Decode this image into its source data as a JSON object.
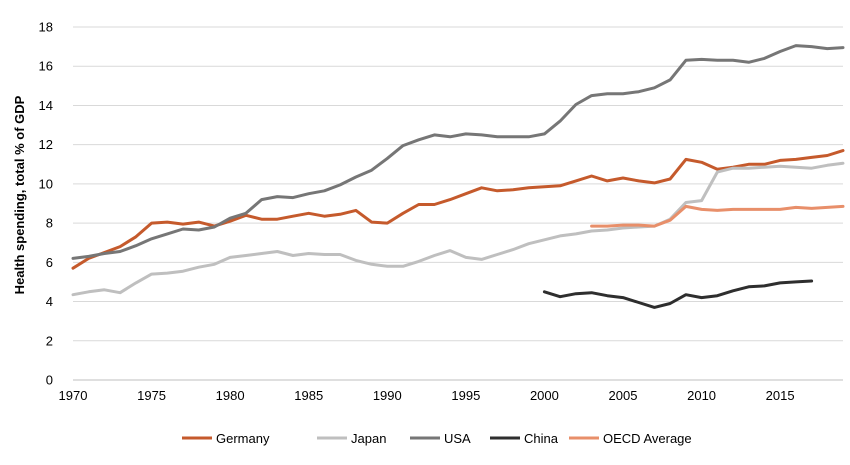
{
  "chart_data": {
    "type": "line",
    "title": "",
    "xlabel": "",
    "ylabel": "Health spending, total % of GDP",
    "xlim": [
      1970,
      2019
    ],
    "ylim": [
      0,
      18
    ],
    "x_ticks": [
      1970,
      1975,
      1980,
      1985,
      1990,
      1995,
      2000,
      2005,
      2010,
      2015
    ],
    "y_ticks": [
      0,
      2,
      4,
      6,
      8,
      10,
      12,
      14,
      16,
      18
    ],
    "grid": "horizontal",
    "legend_position": "bottom",
    "series": [
      {
        "name": "Germany",
        "color": "#c55a2c",
        "points": [
          [
            1970,
            5.7
          ],
          [
            1971,
            6.2
          ],
          [
            1972,
            6.5
          ],
          [
            1973,
            6.8
          ],
          [
            1974,
            7.3
          ],
          [
            1975,
            8.0
          ],
          [
            1976,
            8.05
          ],
          [
            1977,
            7.95
          ],
          [
            1978,
            8.05
          ],
          [
            1979,
            7.85
          ],
          [
            1980,
            8.1
          ],
          [
            1981,
            8.4
          ],
          [
            1982,
            8.2
          ],
          [
            1983,
            8.2
          ],
          [
            1984,
            8.35
          ],
          [
            1985,
            8.5
          ],
          [
            1986,
            8.35
          ],
          [
            1987,
            8.45
          ],
          [
            1988,
            8.65
          ],
          [
            1989,
            8.05
          ],
          [
            1990,
            8.0
          ],
          [
            1991,
            8.5
          ],
          [
            1992,
            8.95
          ],
          [
            1993,
            8.95
          ],
          [
            1994,
            9.2
          ],
          [
            1995,
            9.5
          ],
          [
            1996,
            9.8
          ],
          [
            1997,
            9.65
          ],
          [
            1998,
            9.7
          ],
          [
            1999,
            9.8
          ],
          [
            2000,
            9.85
          ],
          [
            2001,
            9.9
          ],
          [
            2002,
            10.15
          ],
          [
            2003,
            10.4
          ],
          [
            2004,
            10.15
          ],
          [
            2005,
            10.3
          ],
          [
            2006,
            10.15
          ],
          [
            2007,
            10.05
          ],
          [
            2008,
            10.25
          ],
          [
            2009,
            11.25
          ],
          [
            2010,
            11.1
          ],
          [
            2011,
            10.75
          ],
          [
            2012,
            10.85
          ],
          [
            2013,
            11.0
          ],
          [
            2014,
            11.0
          ],
          [
            2015,
            11.2
          ],
          [
            2016,
            11.25
          ],
          [
            2017,
            11.35
          ],
          [
            2018,
            11.45
          ],
          [
            2019,
            11.7
          ]
        ]
      },
      {
        "name": "Japan",
        "color": "#bfbfbf",
        "points": [
          [
            1970,
            4.35
          ],
          [
            1971,
            4.5
          ],
          [
            1972,
            4.6
          ],
          [
            1973,
            4.45
          ],
          [
            1974,
            4.95
          ],
          [
            1975,
            5.4
          ],
          [
            1976,
            5.45
          ],
          [
            1977,
            5.55
          ],
          [
            1978,
            5.75
          ],
          [
            1979,
            5.9
          ],
          [
            1980,
            6.25
          ],
          [
            1981,
            6.35
          ],
          [
            1982,
            6.45
          ],
          [
            1983,
            6.55
          ],
          [
            1984,
            6.35
          ],
          [
            1985,
            6.45
          ],
          [
            1986,
            6.4
          ],
          [
            1987,
            6.4
          ],
          [
            1988,
            6.1
          ],
          [
            1989,
            5.9
          ],
          [
            1990,
            5.8
          ],
          [
            1991,
            5.8
          ],
          [
            1992,
            6.05
          ],
          [
            1993,
            6.35
          ],
          [
            1994,
            6.6
          ],
          [
            1995,
            6.25
          ],
          [
            1996,
            6.15
          ],
          [
            1997,
            6.4
          ],
          [
            1998,
            6.65
          ],
          [
            1999,
            6.95
          ],
          [
            2000,
            7.15
          ],
          [
            2001,
            7.35
          ],
          [
            2002,
            7.45
          ],
          [
            2003,
            7.6
          ],
          [
            2004,
            7.65
          ],
          [
            2005,
            7.75
          ],
          [
            2006,
            7.8
          ],
          [
            2007,
            7.85
          ],
          [
            2008,
            8.2
          ],
          [
            2009,
            9.05
          ],
          [
            2010,
            9.15
          ],
          [
            2011,
            10.6
          ],
          [
            2012,
            10.8
          ],
          [
            2013,
            10.8
          ],
          [
            2014,
            10.85
          ],
          [
            2015,
            10.9
          ],
          [
            2016,
            10.85
          ],
          [
            2017,
            10.8
          ],
          [
            2018,
            10.95
          ],
          [
            2019,
            11.05
          ]
        ]
      },
      {
        "name": "USA",
        "color": "#767676",
        "points": [
          [
            1970,
            6.2
          ],
          [
            1971,
            6.3
          ],
          [
            1972,
            6.45
          ],
          [
            1973,
            6.55
          ],
          [
            1974,
            6.85
          ],
          [
            1975,
            7.2
          ],
          [
            1976,
            7.45
          ],
          [
            1977,
            7.7
          ],
          [
            1978,
            7.65
          ],
          [
            1979,
            7.8
          ],
          [
            1980,
            8.25
          ],
          [
            1981,
            8.5
          ],
          [
            1982,
            9.2
          ],
          [
            1983,
            9.35
          ],
          [
            1984,
            9.3
          ],
          [
            1985,
            9.5
          ],
          [
            1986,
            9.65
          ],
          [
            1987,
            9.95
          ],
          [
            1988,
            10.35
          ],
          [
            1989,
            10.7
          ],
          [
            1990,
            11.3
          ],
          [
            1991,
            11.95
          ],
          [
            1992,
            12.25
          ],
          [
            1993,
            12.5
          ],
          [
            1994,
            12.4
          ],
          [
            1995,
            12.55
          ],
          [
            1996,
            12.5
          ],
          [
            1997,
            12.4
          ],
          [
            1998,
            12.4
          ],
          [
            1999,
            12.4
          ],
          [
            2000,
            12.55
          ],
          [
            2001,
            13.2
          ],
          [
            2002,
            14.05
          ],
          [
            2003,
            14.5
          ],
          [
            2004,
            14.6
          ],
          [
            2005,
            14.6
          ],
          [
            2006,
            14.7
          ],
          [
            2007,
            14.9
          ],
          [
            2008,
            15.3
          ],
          [
            2009,
            16.3
          ],
          [
            2010,
            16.35
          ],
          [
            2011,
            16.3
          ],
          [
            2012,
            16.3
          ],
          [
            2013,
            16.2
          ],
          [
            2014,
            16.4
          ],
          [
            2015,
            16.75
          ],
          [
            2016,
            17.05
          ],
          [
            2017,
            17.0
          ],
          [
            2018,
            16.9
          ],
          [
            2019,
            16.95
          ]
        ]
      },
      {
        "name": "China",
        "color": "#2e2e2e",
        "points": [
          [
            2000,
            4.5
          ],
          [
            2001,
            4.25
          ],
          [
            2002,
            4.4
          ],
          [
            2003,
            4.45
          ],
          [
            2004,
            4.3
          ],
          [
            2005,
            4.2
          ],
          [
            2006,
            3.95
          ],
          [
            2007,
            3.7
          ],
          [
            2008,
            3.9
          ],
          [
            2009,
            4.35
          ],
          [
            2010,
            4.2
          ],
          [
            2011,
            4.3
          ],
          [
            2012,
            4.55
          ],
          [
            2013,
            4.75
          ],
          [
            2014,
            4.8
          ],
          [
            2015,
            4.95
          ],
          [
            2016,
            5.0
          ],
          [
            2017,
            5.05
          ]
        ]
      },
      {
        "name": "OECD Average",
        "color": "#e88f6a",
        "points": [
          [
            2003,
            7.85
          ],
          [
            2004,
            7.85
          ],
          [
            2005,
            7.9
          ],
          [
            2006,
            7.9
          ],
          [
            2007,
            7.85
          ],
          [
            2008,
            8.15
          ],
          [
            2009,
            8.85
          ],
          [
            2010,
            8.7
          ],
          [
            2011,
            8.65
          ],
          [
            2012,
            8.7
          ],
          [
            2013,
            8.7
          ],
          [
            2014,
            8.7
          ],
          [
            2015,
            8.7
          ],
          [
            2016,
            8.8
          ],
          [
            2017,
            8.75
          ],
          [
            2018,
            8.8
          ],
          [
            2019,
            8.85
          ]
        ]
      }
    ]
  }
}
